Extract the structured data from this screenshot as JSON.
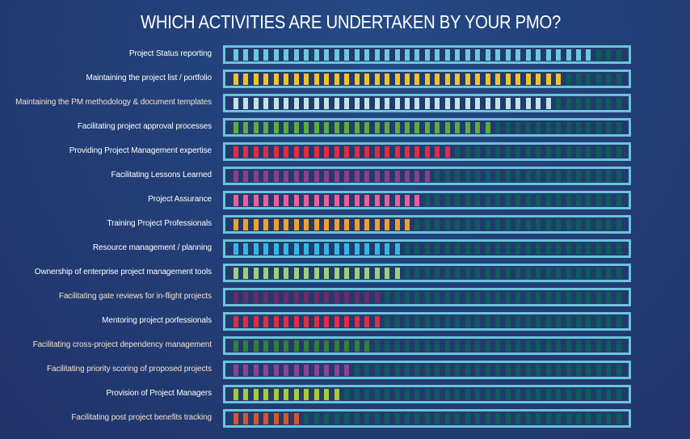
{
  "chart_data": {
    "type": "bar",
    "title": "WHICH ACTIVITIES ARE UNDERTAKEN BY YOUR PMO?",
    "total_segments": 39,
    "unlit_color": "#0f5a5e",
    "frame_color": "#6ac3da",
    "categories": [
      "Project Status reporting",
      "Maintaining the project list / portfolio",
      "Maintaining the PM methodology & document templates",
      "Facilitating project approval processes",
      "Providing Project Management expertise",
      "Facilitating Lessons Learned",
      "Project Assurance",
      "Training Project Professionals",
      "Resource management / planning",
      "Ownership of enterprise project management tools",
      "Facilitating gate reviews for in-flight projects",
      "Mentoring project porfessionals",
      "Facilitating cross-project dependency management",
      "Facilitating priority scoring of proposed projects",
      "Provision of Project Managers",
      "Facilitating post project benefits tracking"
    ],
    "values": [
      36,
      33,
      32,
      26,
      22,
      20,
      19,
      18,
      17,
      17,
      15,
      15,
      14,
      12,
      11,
      7
    ],
    "colors": [
      "#6cc8dc",
      "#f2c12e",
      "#bfe4e6",
      "#5aae3a",
      "#e32b43",
      "#8a3f8c",
      "#ea5f9c",
      "#f29f2e",
      "#33b8e6",
      "#9fcf7a",
      "#6a2b67",
      "#e32b43",
      "#2f8139",
      "#8a4492",
      "#a8c93a",
      "#d55628"
    ],
    "label_tints": [
      false,
      false,
      true,
      false,
      false,
      false,
      false,
      false,
      false,
      false,
      true,
      false,
      true,
      true,
      false,
      true
    ]
  }
}
